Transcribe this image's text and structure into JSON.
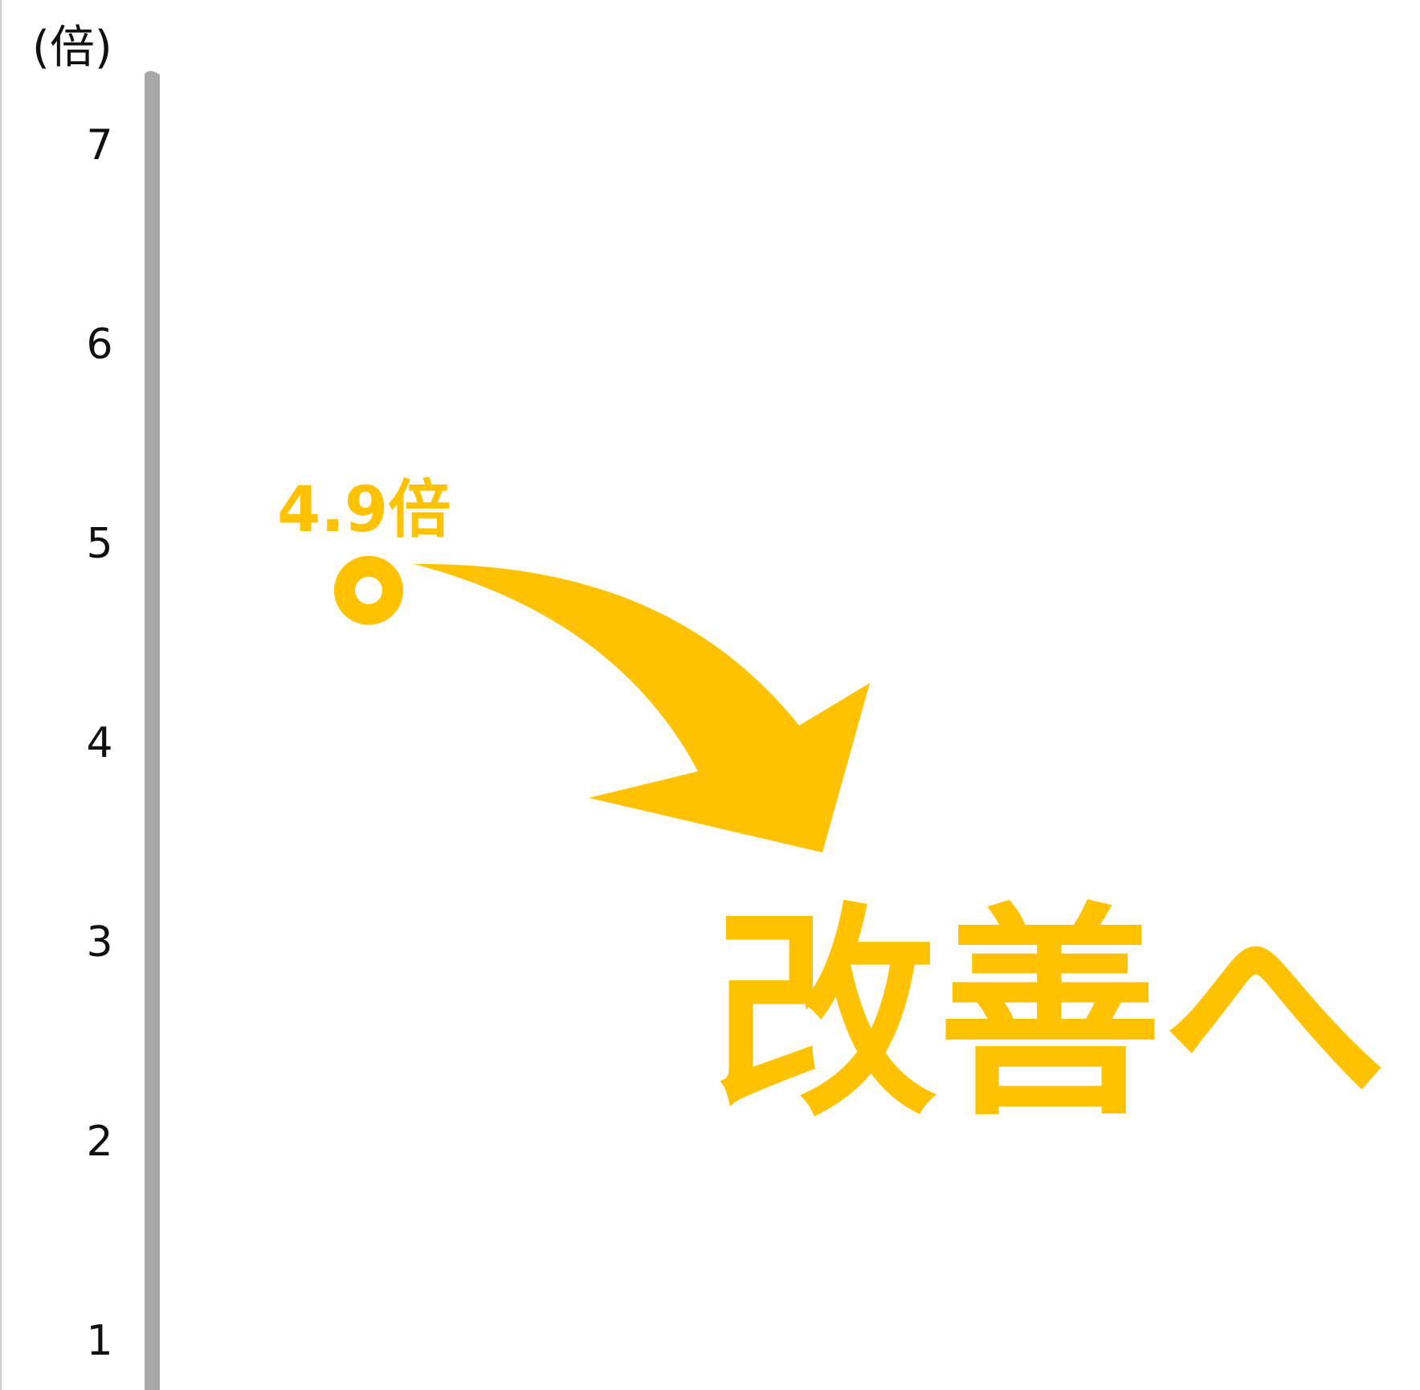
{
  "chart_data": {
    "type": "scatter",
    "yaxis": {
      "unit_label": "(倍)",
      "ylim": [
        1,
        7
      ],
      "ticks": [
        7,
        6,
        5,
        4,
        3,
        2,
        1
      ]
    },
    "points": [
      {
        "y": 4.9,
        "label": "4.9倍"
      }
    ],
    "annotation": {
      "text": "改善へ",
      "style": "curved arrow pointing down-right"
    },
    "colors": {
      "accent": "#FFC200",
      "axis": "#A7A9A9",
      "text": "#111111",
      "point_fill": "#FFFFFF"
    }
  }
}
